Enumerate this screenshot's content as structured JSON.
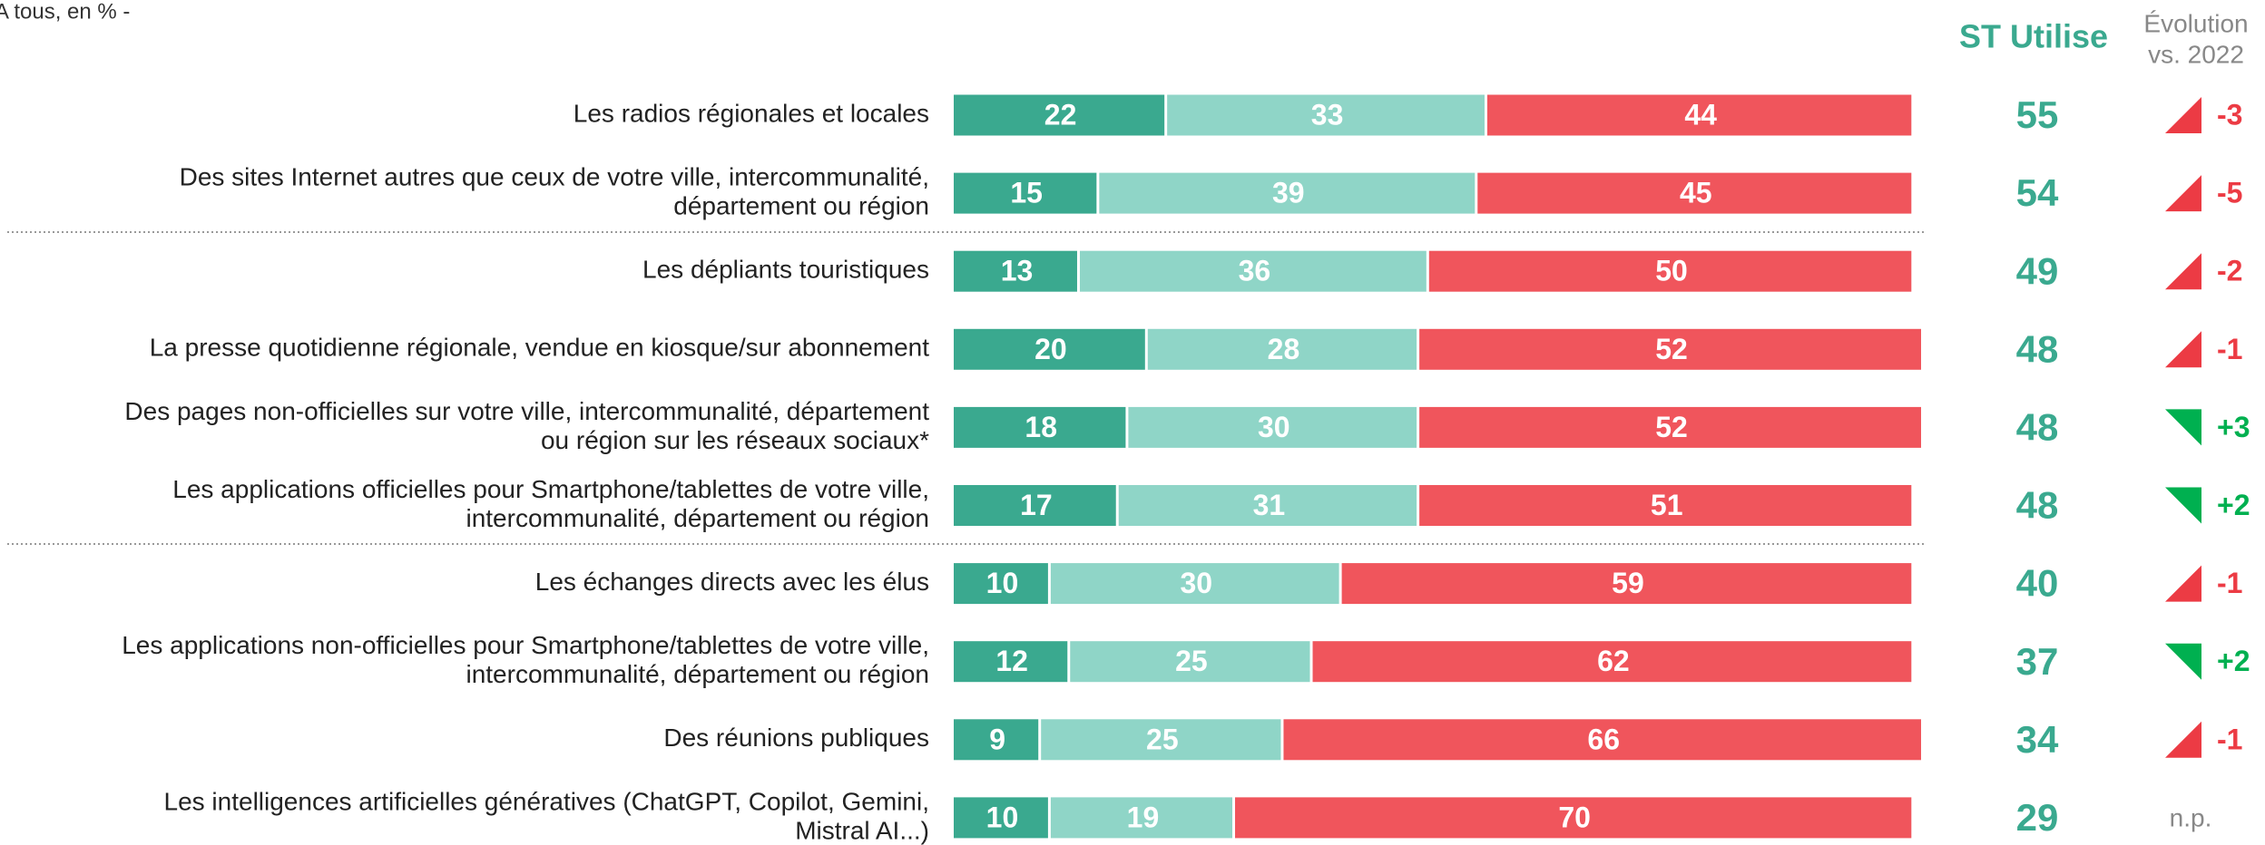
{
  "chart_data": {
    "type": "stacked_barh",
    "note": "A tous, en % -",
    "categories": [
      [
        "Les radios régionales et locales"
      ],
      [
        "Des sites Internet autres que ceux de votre ville, intercommunalité,",
        "département ou région"
      ],
      [
        "Les dépliants touristiques"
      ],
      [
        "La presse quotidienne régionale, vendue en kiosque/sur abonnement"
      ],
      [
        "Des pages non-officielles sur votre ville, intercommunalité, département",
        "ou région sur les réseaux sociaux*"
      ],
      [
        "Les applications officielles pour Smartphone/tablettes de votre ville,",
        "intercommunalité, département ou région"
      ],
      [
        "Les échanges directs avec les élus"
      ],
      [
        "Les applications non-officielles pour Smartphone/tablettes de votre ville,",
        "intercommunalité, département ou région"
      ],
      [
        "Des réunions publiques"
      ],
      [
        "Les intelligences artificielles génératives (ChatGPT, Copilot, Gemini,",
        "Mistral AI...)"
      ]
    ],
    "series": [
      {
        "color": "#3aa98f",
        "values": [
          22,
          15,
          13,
          20,
          18,
          17,
          10,
          12,
          9,
          10
        ]
      },
      {
        "color": "#8fd5c7",
        "values": [
          33,
          39,
          36,
          28,
          30,
          31,
          30,
          25,
          25,
          19
        ]
      },
      {
        "color": "#f0555c",
        "values": [
          44,
          45,
          50,
          52,
          52,
          51,
          59,
          62,
          66,
          70
        ]
      }
    ],
    "xlim": [
      0,
      100
    ],
    "st_column": {
      "title": "ST Utilise",
      "color": "#3aa98f",
      "values": [
        55,
        54,
        49,
        48,
        48,
        48,
        40,
        37,
        34,
        29
      ]
    },
    "evolution_column": {
      "title": [
        "Évolution",
        "vs. 2022"
      ],
      "values": [
        -3,
        -5,
        -2,
        -1,
        3,
        2,
        -1,
        2,
        -1,
        null
      ],
      "value_labels": [
        "-3",
        "-5",
        "-2",
        "-1",
        "+3",
        "+2",
        "-1",
        "+2",
        "-1",
        "n.p."
      ],
      "decrease_color": "#ec3b44",
      "increase_color": "#00b050",
      "missing_color": "#777777"
    }
  }
}
